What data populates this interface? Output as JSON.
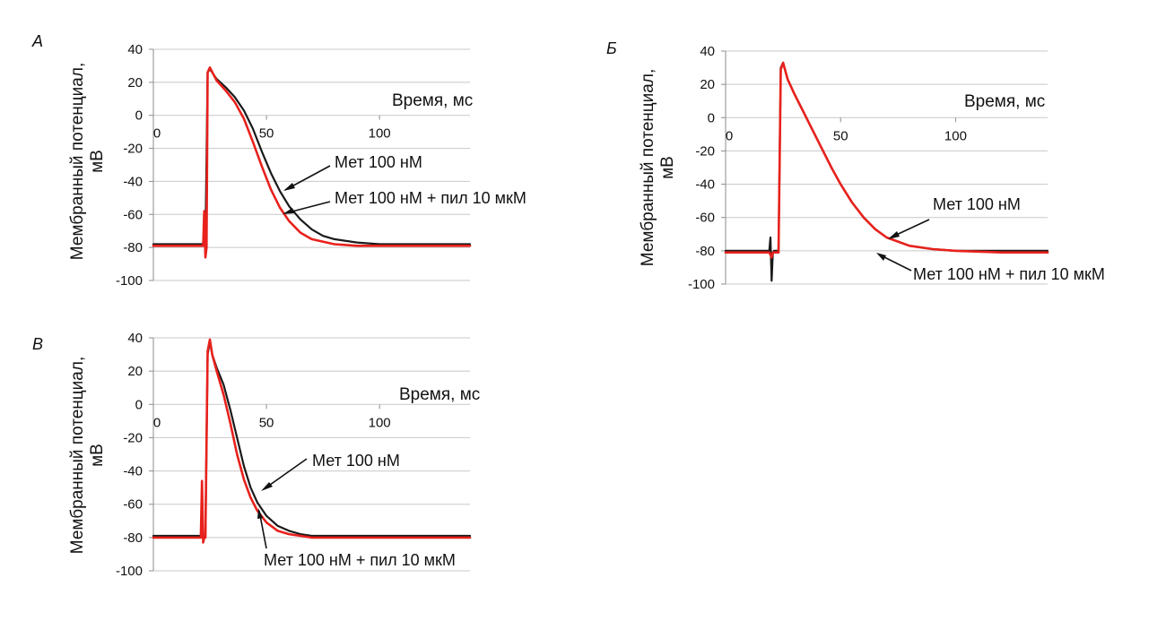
{
  "figure": {
    "colors": {
      "series_black": "#1a1a1a",
      "series_red": "#e8211c",
      "grid": "#c8c8c8",
      "axis": "#8c8c8c"
    }
  },
  "chart_data": [
    {
      "panel": "A",
      "type": "line",
      "xlabel": "Время, мс",
      "ylabel_lines": [
        "Мембранный потенциал,",
        "мВ"
      ],
      "xlim": [
        0,
        140
      ],
      "ylim": [
        -100,
        40
      ],
      "xticks": [
        "0",
        "50",
        "100"
      ],
      "xtick_values": [
        0,
        50,
        100
      ],
      "yticks": [
        "40",
        "20",
        "0",
        "-20",
        "-40",
        "-60",
        "-80",
        "-100"
      ],
      "ytick_values": [
        40,
        20,
        0,
        -20,
        -40,
        -60,
        -80,
        -100
      ],
      "grid": true,
      "series": [
        {
          "color": "#1a1a1a",
          "x": [
            0,
            21,
            22,
            23,
            24,
            25,
            28,
            32,
            36,
            40,
            44,
            48,
            52,
            56,
            60,
            65,
            70,
            75,
            80,
            90,
            100,
            120,
            140
          ],
          "y": [
            -78,
            -78,
            -78,
            -78,
            26,
            28,
            22,
            17,
            11,
            3,
            -8,
            -22,
            -35,
            -46,
            -55,
            -63,
            -69,
            -73,
            -75,
            -77,
            -78,
            -78,
            -78
          ]
        },
        {
          "color": "#e8211c",
          "x": [
            0,
            21,
            22,
            22.5,
            23,
            23.5,
            24,
            25,
            28,
            32,
            36,
            40,
            44,
            48,
            52,
            56,
            60,
            65,
            70,
            80,
            90,
            100,
            120,
            140
          ],
          "y": [
            -79,
            -79,
            -79,
            -58,
            -86,
            -80,
            26,
            29,
            21,
            15,
            8,
            -2,
            -16,
            -31,
            -45,
            -56,
            -64,
            -71,
            -75,
            -78,
            -79,
            -79,
            -79,
            -79
          ]
        }
      ],
      "annotations": [
        {
          "text": "Мет 100 нМ"
        },
        {
          "text": "Мет 100 нМ + пил 10 мкМ"
        }
      ]
    },
    {
      "panel": "Б",
      "type": "line",
      "xlabel": "Время, мс",
      "ylabel_lines": [
        "Мембранный потенциал,",
        "мВ"
      ],
      "xlim": [
        0,
        140
      ],
      "ylim": [
        -100,
        40
      ],
      "xticks": [
        "0",
        "50",
        "100"
      ],
      "xtick_values": [
        0,
        50,
        100
      ],
      "yticks": [
        "40",
        "20",
        "0",
        "-20",
        "-40",
        "-60",
        "-80",
        "-100"
      ],
      "ytick_values": [
        40,
        20,
        0,
        -20,
        -40,
        -60,
        -80,
        -100
      ],
      "grid": true,
      "series": [
        {
          "color": "#1a1a1a",
          "x": [
            0,
            19,
            19.5,
            20,
            20.5,
            21,
            22,
            23,
            24,
            25,
            27,
            30,
            34,
            38,
            42,
            46,
            50,
            55,
            60,
            65,
            70,
            80,
            90,
            100,
            120,
            140
          ],
          "y": [
            -80,
            -80,
            -72,
            -98,
            -82,
            -80,
            -80,
            -80,
            30,
            33,
            23,
            14,
            3,
            -8,
            -19,
            -30,
            -40,
            -51,
            -60,
            -67,
            -72,
            -77,
            -79,
            -80,
            -80,
            -80
          ]
        },
        {
          "color": "#e8211c",
          "x": [
            0,
            19,
            20,
            20.5,
            21,
            22,
            23,
            24,
            25,
            27,
            30,
            34,
            38,
            42,
            46,
            50,
            55,
            60,
            65,
            70,
            80,
            90,
            100,
            120,
            140
          ],
          "y": [
            -81,
            -81,
            -84,
            -81,
            -81,
            -81,
            -81,
            29,
            33,
            23,
            14,
            3,
            -8,
            -19,
            -30,
            -40,
            -51,
            -60,
            -67,
            -72,
            -77,
            -79,
            -80,
            -81,
            -81
          ]
        }
      ],
      "annotations": [
        {
          "text": "Мет 100 нМ"
        },
        {
          "text": "Мет 100 нМ + пил 10 мкМ"
        }
      ]
    },
    {
      "panel": "В",
      "type": "line",
      "xlabel": "Время, мс",
      "ylabel_lines": [
        "Мембранный потенциал,",
        "мВ"
      ],
      "xlim": [
        0,
        140
      ],
      "ylim": [
        -100,
        40
      ],
      "xticks": [
        "0",
        "50",
        "100"
      ],
      "xtick_values": [
        0,
        50,
        100
      ],
      "yticks": [
        "40",
        "20",
        "0",
        "-20",
        "-40",
        "-60",
        "-80",
        "-100"
      ],
      "ytick_values": [
        40,
        20,
        0,
        -20,
        -40,
        -60,
        -80,
        -100
      ],
      "grid": true,
      "series": [
        {
          "color": "#1a1a1a",
          "x": [
            0,
            21,
            22,
            23,
            24,
            25,
            26,
            28,
            31,
            34,
            37,
            40,
            43,
            46,
            50,
            55,
            60,
            65,
            70,
            80,
            90,
            100,
            120,
            140
          ],
          "y": [
            -79,
            -79,
            -79,
            -79,
            30,
            38,
            30,
            22,
            12,
            -3,
            -20,
            -37,
            -50,
            -59,
            -67,
            -73,
            -76,
            -78,
            -79,
            -79,
            -79,
            -79,
            -79,
            -79
          ]
        },
        {
          "color": "#e8211c",
          "x": [
            0,
            21,
            21.5,
            22,
            22.5,
            23,
            24,
            25,
            26,
            28,
            31,
            34,
            37,
            40,
            43,
            46,
            50,
            55,
            60,
            65,
            70,
            80,
            90,
            100,
            120,
            140
          ],
          "y": [
            -80,
            -80,
            -46,
            -83,
            -80,
            -80,
            32,
            39,
            30,
            20,
            6,
            -11,
            -30,
            -45,
            -56,
            -64,
            -71,
            -76,
            -78,
            -79,
            -80,
            -80,
            -80,
            -80,
            -80,
            -80
          ]
        }
      ],
      "annotations": [
        {
          "text": "Мет 100 нМ"
        },
        {
          "text": "Мет 100 нМ + пил 10 мкМ"
        }
      ]
    }
  ]
}
